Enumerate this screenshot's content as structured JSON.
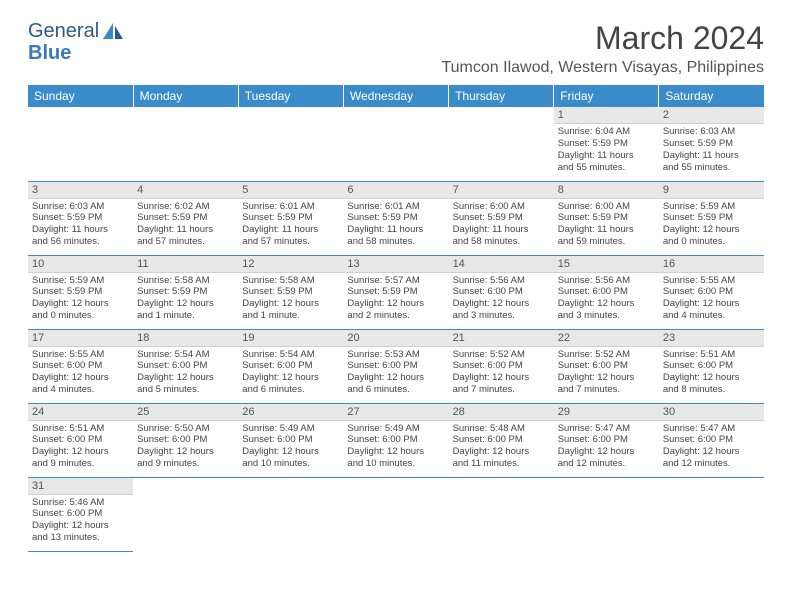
{
  "brand": {
    "part1": "General",
    "part2": "Blue"
  },
  "title": "March 2024",
  "location": "Tumcon Ilawod, Western Visayas, Philippines",
  "colors": {
    "header_bg": "#3a8bc9",
    "daynum_bg": "#e8e8e8",
    "rule": "#3a8bc9"
  },
  "weekdays": [
    "Sunday",
    "Monday",
    "Tuesday",
    "Wednesday",
    "Thursday",
    "Friday",
    "Saturday"
  ],
  "weeks": [
    [
      null,
      null,
      null,
      null,
      null,
      {
        "n": "1",
        "sr": "Sunrise: 6:04 AM",
        "ss": "Sunset: 5:59 PM",
        "d1": "Daylight: 11 hours",
        "d2": "and 55 minutes."
      },
      {
        "n": "2",
        "sr": "Sunrise: 6:03 AM",
        "ss": "Sunset: 5:59 PM",
        "d1": "Daylight: 11 hours",
        "d2": "and 55 minutes."
      }
    ],
    [
      {
        "n": "3",
        "sr": "Sunrise: 6:03 AM",
        "ss": "Sunset: 5:59 PM",
        "d1": "Daylight: 11 hours",
        "d2": "and 56 minutes."
      },
      {
        "n": "4",
        "sr": "Sunrise: 6:02 AM",
        "ss": "Sunset: 5:59 PM",
        "d1": "Daylight: 11 hours",
        "d2": "and 57 minutes."
      },
      {
        "n": "5",
        "sr": "Sunrise: 6:01 AM",
        "ss": "Sunset: 5:59 PM",
        "d1": "Daylight: 11 hours",
        "d2": "and 57 minutes."
      },
      {
        "n": "6",
        "sr": "Sunrise: 6:01 AM",
        "ss": "Sunset: 5:59 PM",
        "d1": "Daylight: 11 hours",
        "d2": "and 58 minutes."
      },
      {
        "n": "7",
        "sr": "Sunrise: 6:00 AM",
        "ss": "Sunset: 5:59 PM",
        "d1": "Daylight: 11 hours",
        "d2": "and 58 minutes."
      },
      {
        "n": "8",
        "sr": "Sunrise: 6:00 AM",
        "ss": "Sunset: 5:59 PM",
        "d1": "Daylight: 11 hours",
        "d2": "and 59 minutes."
      },
      {
        "n": "9",
        "sr": "Sunrise: 5:59 AM",
        "ss": "Sunset: 5:59 PM",
        "d1": "Daylight: 12 hours",
        "d2": "and 0 minutes."
      }
    ],
    [
      {
        "n": "10",
        "sr": "Sunrise: 5:59 AM",
        "ss": "Sunset: 5:59 PM",
        "d1": "Daylight: 12 hours",
        "d2": "and 0 minutes."
      },
      {
        "n": "11",
        "sr": "Sunrise: 5:58 AM",
        "ss": "Sunset: 5:59 PM",
        "d1": "Daylight: 12 hours",
        "d2": "and 1 minute."
      },
      {
        "n": "12",
        "sr": "Sunrise: 5:58 AM",
        "ss": "Sunset: 5:59 PM",
        "d1": "Daylight: 12 hours",
        "d2": "and 1 minute."
      },
      {
        "n": "13",
        "sr": "Sunrise: 5:57 AM",
        "ss": "Sunset: 5:59 PM",
        "d1": "Daylight: 12 hours",
        "d2": "and 2 minutes."
      },
      {
        "n": "14",
        "sr": "Sunrise: 5:56 AM",
        "ss": "Sunset: 6:00 PM",
        "d1": "Daylight: 12 hours",
        "d2": "and 3 minutes."
      },
      {
        "n": "15",
        "sr": "Sunrise: 5:56 AM",
        "ss": "Sunset: 6:00 PM",
        "d1": "Daylight: 12 hours",
        "d2": "and 3 minutes."
      },
      {
        "n": "16",
        "sr": "Sunrise: 5:55 AM",
        "ss": "Sunset: 6:00 PM",
        "d1": "Daylight: 12 hours",
        "d2": "and 4 minutes."
      }
    ],
    [
      {
        "n": "17",
        "sr": "Sunrise: 5:55 AM",
        "ss": "Sunset: 6:00 PM",
        "d1": "Daylight: 12 hours",
        "d2": "and 4 minutes."
      },
      {
        "n": "18",
        "sr": "Sunrise: 5:54 AM",
        "ss": "Sunset: 6:00 PM",
        "d1": "Daylight: 12 hours",
        "d2": "and 5 minutes."
      },
      {
        "n": "19",
        "sr": "Sunrise: 5:54 AM",
        "ss": "Sunset: 6:00 PM",
        "d1": "Daylight: 12 hours",
        "d2": "and 6 minutes."
      },
      {
        "n": "20",
        "sr": "Sunrise: 5:53 AM",
        "ss": "Sunset: 6:00 PM",
        "d1": "Daylight: 12 hours",
        "d2": "and 6 minutes."
      },
      {
        "n": "21",
        "sr": "Sunrise: 5:52 AM",
        "ss": "Sunset: 6:00 PM",
        "d1": "Daylight: 12 hours",
        "d2": "and 7 minutes."
      },
      {
        "n": "22",
        "sr": "Sunrise: 5:52 AM",
        "ss": "Sunset: 6:00 PM",
        "d1": "Daylight: 12 hours",
        "d2": "and 7 minutes."
      },
      {
        "n": "23",
        "sr": "Sunrise: 5:51 AM",
        "ss": "Sunset: 6:00 PM",
        "d1": "Daylight: 12 hours",
        "d2": "and 8 minutes."
      }
    ],
    [
      {
        "n": "24",
        "sr": "Sunrise: 5:51 AM",
        "ss": "Sunset: 6:00 PM",
        "d1": "Daylight: 12 hours",
        "d2": "and 9 minutes."
      },
      {
        "n": "25",
        "sr": "Sunrise: 5:50 AM",
        "ss": "Sunset: 6:00 PM",
        "d1": "Daylight: 12 hours",
        "d2": "and 9 minutes."
      },
      {
        "n": "26",
        "sr": "Sunrise: 5:49 AM",
        "ss": "Sunset: 6:00 PM",
        "d1": "Daylight: 12 hours",
        "d2": "and 10 minutes."
      },
      {
        "n": "27",
        "sr": "Sunrise: 5:49 AM",
        "ss": "Sunset: 6:00 PM",
        "d1": "Daylight: 12 hours",
        "d2": "and 10 minutes."
      },
      {
        "n": "28",
        "sr": "Sunrise: 5:48 AM",
        "ss": "Sunset: 6:00 PM",
        "d1": "Daylight: 12 hours",
        "d2": "and 11 minutes."
      },
      {
        "n": "29",
        "sr": "Sunrise: 5:47 AM",
        "ss": "Sunset: 6:00 PM",
        "d1": "Daylight: 12 hours",
        "d2": "and 12 minutes."
      },
      {
        "n": "30",
        "sr": "Sunrise: 5:47 AM",
        "ss": "Sunset: 6:00 PM",
        "d1": "Daylight: 12 hours",
        "d2": "and 12 minutes."
      }
    ],
    [
      {
        "n": "31",
        "sr": "Sunrise: 5:46 AM",
        "ss": "Sunset: 6:00 PM",
        "d1": "Daylight: 12 hours",
        "d2": "and 13 minutes."
      },
      null,
      null,
      null,
      null,
      null,
      null
    ]
  ]
}
